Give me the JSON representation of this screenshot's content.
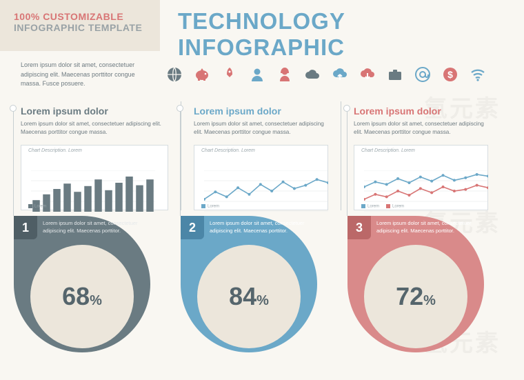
{
  "header": {
    "badge_line1": "100% CUSTOMIZABLE",
    "badge_line2": "INFOGRAPHIC TEMPLATE",
    "title": "TECHNOLOGY INFOGRAPHIC",
    "badge_color_accent": "#d87575",
    "badge_color_muted": "#99a2a6",
    "title_color": "#6ba8c8",
    "badge_bg": "#ece6db"
  },
  "intro_text": "Lorem ipsum dolor sit amet, consectetuer adipiscing elit. Maecenas porttitor congue massa. Fusce posuere.",
  "icons": [
    {
      "name": "globe-icon",
      "color": "#6a7b82"
    },
    {
      "name": "piggy-bank-icon",
      "color": "#d87575"
    },
    {
      "name": "rocket-icon",
      "color": "#d87575"
    },
    {
      "name": "person-male-icon",
      "color": "#6ba8c8"
    },
    {
      "name": "person-female-icon",
      "color": "#d87575"
    },
    {
      "name": "cloud-icon",
      "color": "#6a7b82"
    },
    {
      "name": "cloud-upload-icon",
      "color": "#6ba8c8"
    },
    {
      "name": "cloud-download-icon",
      "color": "#d87575"
    },
    {
      "name": "briefcase-icon",
      "color": "#6a7b82"
    },
    {
      "name": "at-sign-icon",
      "color": "#6ba8c8"
    },
    {
      "name": "dollar-coin-icon",
      "color": "#d87575"
    },
    {
      "name": "wifi-icon",
      "color": "#6ba8c8"
    }
  ],
  "columns": [
    {
      "title": "Lorem ipsum dolor",
      "title_color": "#6a7b82",
      "body": "Lorem ipsum dolor sit amet, consectetuer adipiscing elit. Maecenas porttitor congue massa.",
      "chart": {
        "type": "bar",
        "desc": "Chart Description. Lorem",
        "values": [
          28,
          42,
          55,
          68,
          48,
          62,
          78,
          52,
          70,
          85,
          64,
          78
        ],
        "bar_color": "#6a7b82",
        "grid_color": "#e0e3e5",
        "ylim": [
          0,
          100
        ],
        "legend": [
          "Lorem"
        ]
      },
      "drop": {
        "number": "1",
        "text": "Lorem ipsum dolor sit amet, consectetuer adipiscing elit. Maecenas porttitor.",
        "pct": "68",
        "bg": "#6a7b82",
        "notch_bg": "#4f5e65",
        "inner_bg": "#ece6db",
        "pct_color": "#55656c"
      }
    },
    {
      "title": "Lorem ipsum dolor",
      "title_color": "#6ba8c8",
      "body": "Lorem ipsum dolor sit amet, consectetuer adipiscing elit. Maecenas porttitor congue massa.",
      "chart": {
        "type": "line",
        "desc": "Chart Description. Lorem",
        "series": [
          {
            "color": "#6ba8c8",
            "points": [
              30,
              48,
              36,
              58,
              42,
              66,
              50,
              72,
              56,
              64,
              78,
              70
            ]
          }
        ],
        "grid_color": "#e0e3e5",
        "ylim": [
          0,
          100
        ],
        "marker": "circle",
        "legend": [
          "Lorem"
        ]
      },
      "drop": {
        "number": "2",
        "text": "Lorem ipsum dolor sit amet, consectetuer adipiscing elit. Maecenas porttitor.",
        "pct": "84",
        "bg": "#6ba8c8",
        "notch_bg": "#4b86a7",
        "inner_bg": "#ece6db",
        "pct_color": "#55656c"
      }
    },
    {
      "title": "Lorem ipsum dolor",
      "title_color": "#d87575",
      "body": "Lorem ipsum dolor sit amet, consectetuer adipiscing elit. Maecenas porttitor congue massa.",
      "chart": {
        "type": "line",
        "desc": "Chart Description. Lorem",
        "series": [
          {
            "color": "#6ba8c8",
            "points": [
              60,
              72,
              66,
              80,
              70,
              84,
              74,
              88,
              76,
              82,
              90,
              86
            ]
          },
          {
            "color": "#d87575",
            "points": [
              30,
              42,
              36,
              50,
              40,
              56,
              46,
              60,
              50,
              54,
              64,
              58
            ]
          }
        ],
        "grid_color": "#e0e3e5",
        "ylim": [
          0,
          100
        ],
        "marker": "circle",
        "legend": [
          "Lorem",
          "Lorem"
        ]
      },
      "drop": {
        "number": "3",
        "text": "Lorem ipsum dolor sit amet, consectetuer adipiscing elit. Maecenas porttitor.",
        "pct": "72",
        "bg": "#d98a8a",
        "notch_bg": "#bb6868",
        "inner_bg": "#ece6db",
        "pct_color": "#55656c"
      }
    }
  ],
  "page_bg": "#f9f7f2",
  "divider_color": "#c7cfd2"
}
